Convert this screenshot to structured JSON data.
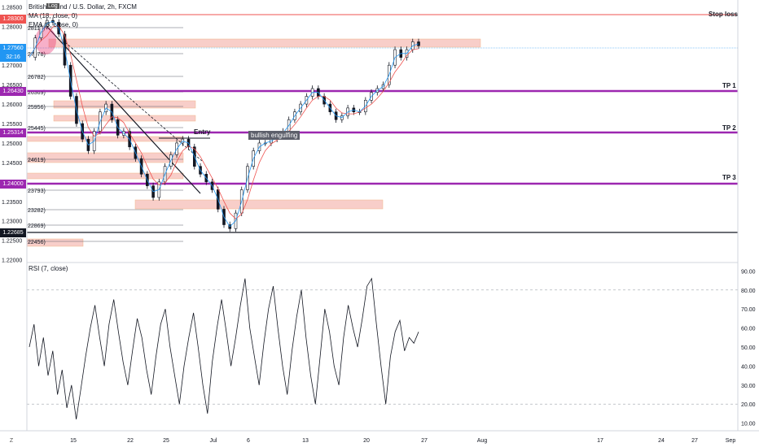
{
  "header": {
    "symbol_line": "British Pound / U.S. Dollar, 2h, FXCM",
    "ma_line": "MA (18, close, 0)",
    "ema_line": "EMA (8, close, 0)",
    "top_left_tag": "Log"
  },
  "rsi_panel": {
    "label": "RSI (7, close)"
  },
  "price_tags": {
    "stop": "1.28300",
    "current": "1.27560",
    "countdown": "32:16",
    "tp1": "1.26430",
    "tp2": "1.25314",
    "tp3": "1.24000",
    "low": "1.22685"
  },
  "annotations": {
    "stop_loss": "Stop loss",
    "tp1": "TP 1",
    "tp2": "TP 2",
    "tp3": "TP 3",
    "entry": "Entry",
    "bullish": "bullish engulfing"
  },
  "fib_levels": [
    "28117)",
    "27378)",
    "26782)",
    "26369)",
    "25956)",
    "25445)",
    "24619)",
    "23793)",
    "23282)",
    "22869)",
    "22456)"
  ],
  "colors": {
    "tp_line": "#9c27b0",
    "stop_line": "#ef5350",
    "current_line": "#2196f3",
    "zone_fill": "#f8c9c4",
    "rsi_line": "#131722"
  },
  "chart_data": [
    {
      "type": "line",
      "title": "British Pound / U.S. Dollar, 2h, FXCM",
      "y_axis_ticks": [
        "1.28500",
        "1.28000",
        "1.27500",
        "1.27000",
        "1.26500",
        "1.26000",
        "1.25500",
        "1.25000",
        "1.24500",
        "1.24000",
        "1.23500",
        "1.23000",
        "1.22500",
        "1.22000"
      ],
      "ylim": [
        1.2195,
        1.2855
      ],
      "x_ticks": [
        "15",
        "22",
        "25",
        "Jul",
        "6",
        "13",
        "20",
        "27",
        "Aug",
        "17",
        "24",
        "27",
        "Sep"
      ],
      "series": [
        {
          "name": "GBPUSD",
          "values": [
            1.272,
            1.277,
            1.28,
            1.2815,
            1.281,
            1.278,
            1.27,
            1.262,
            1.255,
            1.251,
            1.248,
            1.253,
            1.258,
            1.26,
            1.256,
            1.252,
            1.253,
            1.249,
            1.246,
            1.242,
            1.239,
            1.236,
            1.24,
            1.244,
            1.247,
            1.25,
            1.251,
            1.249,
            1.244,
            1.242,
            1.24,
            1.238,
            1.233,
            1.229,
            1.228,
            1.232,
            1.238,
            1.244,
            1.248,
            1.25,
            1.25,
            1.251,
            1.252,
            1.253,
            1.256,
            1.258,
            1.26,
            1.262,
            1.264,
            1.262,
            1.26,
            1.258,
            1.256,
            1.257,
            1.259,
            1.258,
            1.258,
            1.261,
            1.263,
            1.264,
            1.265,
            1.27,
            1.274,
            1.272,
            1.274,
            1.276,
            1.275
          ]
        }
      ],
      "hlines": [
        {
          "label": "Stop loss",
          "value": 1.283
        },
        {
          "label": "TP 1",
          "value": 1.2643
        },
        {
          "label": "TP 2",
          "value": 1.25314
        },
        {
          "label": "TP 3",
          "value": 1.24
        },
        {
          "label": "",
          "value": 1.22685
        }
      ]
    },
    {
      "type": "line",
      "title": "RSI (7, close)",
      "y_axis_ticks": [
        "90.00",
        "80.00",
        "70.00",
        "60.00",
        "50.00",
        "40.00",
        "30.00",
        "20.00",
        "10.00"
      ],
      "ylim": [
        6,
        94
      ],
      "series": [
        {
          "name": "RSI",
          "values": [
            50,
            62,
            40,
            55,
            35,
            48,
            25,
            38,
            18,
            30,
            12,
            28,
            45,
            60,
            72,
            55,
            40,
            62,
            75,
            58,
            42,
            30,
            48,
            65,
            55,
            38,
            25,
            45,
            62,
            70,
            50,
            35,
            20,
            40,
            55,
            68,
            50,
            30,
            15,
            42,
            60,
            75,
            58,
            40,
            55,
            72,
            86,
            60,
            45,
            30,
            52,
            70,
            82,
            60,
            40,
            25,
            48,
            66,
            80,
            55,
            35,
            20,
            45,
            70,
            58,
            40,
            30,
            55,
            72,
            60,
            50,
            65,
            82,
            86,
            62,
            40,
            20,
            45,
            58,
            64,
            48,
            55,
            52,
            58
          ]
        }
      ]
    }
  ]
}
